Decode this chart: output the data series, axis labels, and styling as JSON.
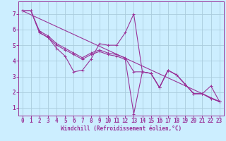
{
  "xlabel": "Windchill (Refroidissement éolien,°C)",
  "bg_color": "#cceeff",
  "grid_color": "#aaccdd",
  "line_color": "#993399",
  "xlim": [
    -0.5,
    23.5
  ],
  "ylim": [
    0.5,
    7.8
  ],
  "yticks": [
    1,
    2,
    3,
    4,
    5,
    6,
    7
  ],
  "xticks": [
    0,
    1,
    2,
    3,
    4,
    5,
    6,
    7,
    8,
    9,
    10,
    11,
    12,
    13,
    14,
    15,
    16,
    17,
    18,
    19,
    20,
    21,
    22,
    23
  ],
  "series1_x": [
    0,
    1,
    2,
    3,
    4,
    5,
    6,
    7,
    8,
    9,
    10,
    11,
    12,
    13,
    14,
    15,
    16,
    17,
    18,
    19,
    20,
    21,
    22,
    23
  ],
  "series1_y": [
    7.2,
    7.2,
    5.8,
    5.5,
    4.8,
    4.3,
    3.3,
    3.4,
    4.1,
    5.1,
    5.0,
    5.0,
    5.8,
    7.0,
    3.3,
    3.2,
    2.3,
    3.4,
    3.1,
    2.5,
    1.9,
    1.9,
    2.4,
    1.4
  ],
  "series2_x": [
    0,
    1,
    2,
    3,
    4,
    5,
    6,
    7,
    8,
    9,
    10,
    11,
    12,
    13,
    14,
    15,
    16,
    17,
    18,
    19,
    20,
    21,
    22,
    23
  ],
  "series2_y": [
    7.2,
    7.2,
    5.8,
    5.5,
    5.0,
    4.7,
    4.4,
    4.1,
    4.4,
    4.6,
    4.4,
    4.3,
    4.1,
    0.6,
    3.3,
    3.2,
    2.3,
    3.4,
    3.1,
    2.5,
    1.9,
    1.9,
    1.6,
    1.4
  ],
  "series3_x": [
    0,
    1,
    2,
    3,
    4,
    5,
    6,
    7,
    8,
    9,
    10,
    11,
    12,
    13,
    14,
    15,
    16,
    17,
    18,
    19,
    20,
    21,
    22,
    23
  ],
  "series3_y": [
    7.2,
    7.2,
    5.9,
    5.6,
    5.1,
    4.8,
    4.5,
    4.2,
    4.5,
    4.7,
    4.5,
    4.4,
    4.2,
    3.3,
    3.3,
    3.2,
    2.3,
    3.4,
    3.1,
    2.5,
    1.9,
    1.9,
    1.6,
    1.4
  ],
  "series4_x": [
    0,
    23
  ],
  "series4_y": [
    7.2,
    1.4
  ],
  "font_size": 5.5,
  "xlabel_fontsize": 5.5
}
